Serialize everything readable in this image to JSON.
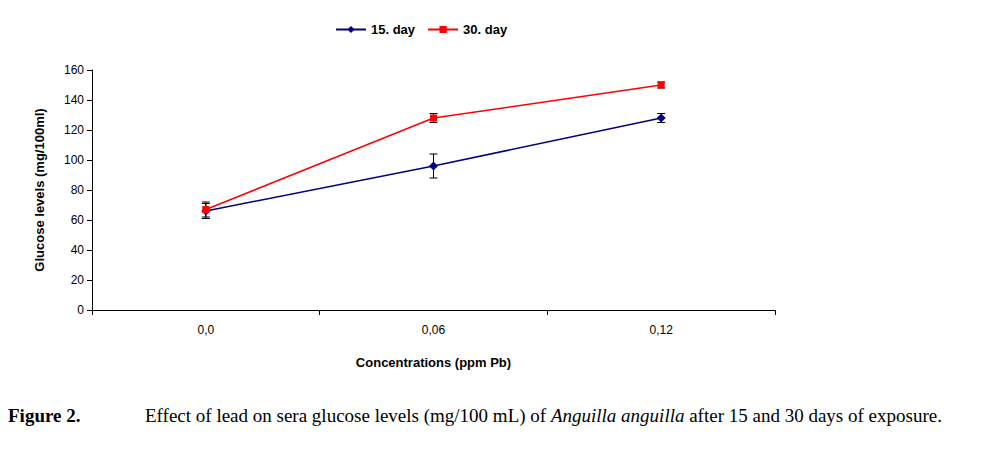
{
  "chart_data": {
    "type": "line",
    "x_label": "Concentrations (ppm Pb)",
    "y_label": "Glucose levels (mg/100ml)",
    "categories": [
      "0,0",
      "0,06",
      "0,12"
    ],
    "series": [
      {
        "name": "15. day",
        "color": "#000080",
        "marker": "diamond",
        "line_style": "solid",
        "values": [
          66,
          96,
          128
        ],
        "errors": [
          5,
          8,
          3
        ]
      },
      {
        "name": "30. day",
        "color": "#ff0000",
        "marker": "square",
        "line_style": "solid",
        "values": [
          67,
          128,
          150
        ],
        "errors": [
          5,
          3,
          2
        ]
      }
    ],
    "ylim": [
      0,
      160
    ],
    "yticks": [
      0,
      20,
      40,
      60,
      80,
      100,
      120,
      140,
      160
    ],
    "grid": false,
    "legend": "top"
  },
  "caption": {
    "label": "Figure 2.",
    "parts": [
      {
        "text": "Effect of lead on sera glucose levels (mg/100 mL) of ",
        "style": "normal"
      },
      {
        "text": "Anguilla anguilla",
        "style": "italic"
      },
      {
        "text": " after 15 and 30 days of exposure.",
        "style": "normal"
      }
    ]
  }
}
